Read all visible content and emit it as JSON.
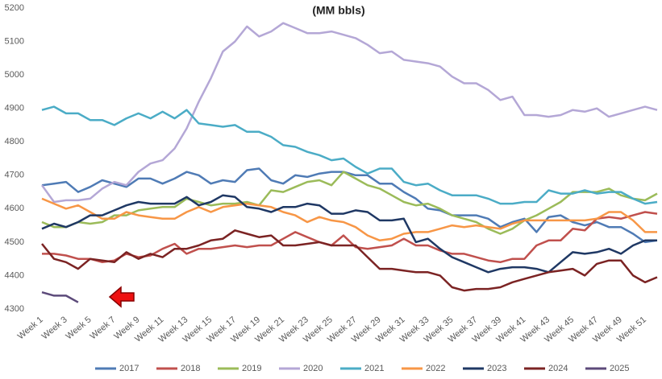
{
  "chart_data": {
    "type": "line",
    "title": "(MM bbls)",
    "categories": [
      "Week 1",
      null,
      "Week 3",
      null,
      "Week 5",
      null,
      "Week 7",
      null,
      "Week 9",
      null,
      "Week 11",
      null,
      "Week 13",
      null,
      "Week 15",
      null,
      "Week 17",
      null,
      "Week 19",
      null,
      "Week 21",
      null,
      "Week 23",
      null,
      "Week 25",
      null,
      "Week 27",
      null,
      "Week 29",
      null,
      "Week 31",
      null,
      "Week 33",
      null,
      "Week 35",
      null,
      "Week 37",
      null,
      "Week 39",
      null,
      "Week 41",
      null,
      "Week 43",
      null,
      "Week 45",
      null,
      "Week 47",
      null,
      "Week 49",
      null,
      "Week 51",
      null
    ],
    "ylim": [
      4300,
      5200
    ],
    "yticks": [
      4300,
      4400,
      4500,
      4600,
      4700,
      4800,
      4900,
      5000,
      5100,
      5200
    ],
    "grid": false,
    "legend": "bottom",
    "series": [
      {
        "name": "2017",
        "color": "#4f7bb5",
        "values": [
          4670,
          4675,
          4680,
          4650,
          4665,
          4685,
          4675,
          4665,
          4690,
          4690,
          4675,
          4690,
          4710,
          4700,
          4675,
          4685,
          4680,
          4715,
          4720,
          4685,
          4675,
          4700,
          4695,
          4705,
          4710,
          4710,
          4700,
          4700,
          4675,
          4675,
          4650,
          4630,
          4600,
          4595,
          4580,
          4580,
          4580,
          4570,
          4545,
          4560,
          4570,
          4530,
          4575,
          4580,
          4560,
          4550,
          4560,
          4545,
          4545,
          4525,
          4500,
          4505
        ]
      },
      {
        "name": "2018",
        "color": "#c0504d",
        "values": [
          4465,
          4465,
          4460,
          4450,
          4450,
          4440,
          4445,
          4465,
          4455,
          4460,
          4480,
          4495,
          4465,
          4480,
          4480,
          4485,
          4490,
          4485,
          4490,
          4490,
          4510,
          4530,
          4515,
          4500,
          4490,
          4520,
          4485,
          4480,
          4485,
          4490,
          4510,
          4490,
          4490,
          4475,
          4465,
          4465,
          4455,
          4445,
          4440,
          4450,
          4450,
          4490,
          4505,
          4505,
          4540,
          4535,
          4570,
          4575,
          4570,
          4580,
          4590,
          4585
        ]
      },
      {
        "name": "2019",
        "color": "#9bbb59",
        "values": [
          4560,
          4545,
          4545,
          4560,
          4555,
          4560,
          4580,
          4580,
          4595,
          4600,
          4605,
          4605,
          4630,
          4620,
          4610,
          4615,
          4615,
          4620,
          4610,
          4655,
          4650,
          4665,
          4680,
          4685,
          4670,
          4710,
          4690,
          4670,
          4660,
          4640,
          4620,
          4610,
          4615,
          4600,
          4580,
          4570,
          4560,
          4540,
          4525,
          4540,
          4565,
          4580,
          4600,
          4620,
          4650,
          4650,
          4650,
          4660,
          4640,
          4630,
          4625,
          4645
        ]
      },
      {
        "name": "2020",
        "color": "#b4a7d6",
        "values": [
          4670,
          4620,
          4625,
          4625,
          4630,
          4660,
          4680,
          4670,
          4710,
          4735,
          4745,
          4780,
          4840,
          4920,
          4990,
          5070,
          5100,
          5145,
          5115,
          5130,
          5155,
          5140,
          5125,
          5125,
          5130,
          5120,
          5110,
          5090,
          5065,
          5070,
          5045,
          5040,
          5035,
          5025,
          4995,
          4975,
          4975,
          4955,
          4925,
          4935,
          4880,
          4880,
          4875,
          4880,
          4895,
          4890,
          4900,
          4875,
          4885,
          4895,
          4905,
          4895
        ]
      },
      {
        "name": "2021",
        "color": "#4bacc6",
        "values": [
          4895,
          4905,
          4885,
          4885,
          4865,
          4865,
          4850,
          4870,
          4885,
          4870,
          4890,
          4870,
          4895,
          4855,
          4850,
          4845,
          4850,
          4830,
          4830,
          4815,
          4790,
          4785,
          4770,
          4760,
          4745,
          4750,
          4725,
          4705,
          4720,
          4720,
          4680,
          4670,
          4675,
          4655,
          4640,
          4640,
          4640,
          4630,
          4615,
          4615,
          4620,
          4620,
          4655,
          4645,
          4645,
          4655,
          4645,
          4650,
          4650,
          4630,
          4615,
          4620
        ]
      },
      {
        "name": "2022",
        "color": "#f79646",
        "values": [
          4630,
          4615,
          4600,
          4610,
          4590,
          4570,
          4570,
          4590,
          4580,
          4575,
          4570,
          4570,
          4590,
          4605,
          4590,
          4605,
          4610,
          4615,
          4610,
          4605,
          4590,
          4580,
          4560,
          4575,
          4565,
          4560,
          4545,
          4520,
          4505,
          4510,
          4525,
          4530,
          4530,
          4540,
          4550,
          4545,
          4550,
          4545,
          4540,
          4555,
          4565,
          4565,
          4565,
          4565,
          4565,
          4565,
          4570,
          4590,
          4590,
          4565,
          4530,
          4530
        ]
      },
      {
        "name": "2023",
        "color": "#1f3864",
        "values": [
          4540,
          4555,
          4545,
          4560,
          4580,
          4580,
          4595,
          4610,
          4620,
          4615,
          4615,
          4615,
          4635,
          4610,
          4620,
          4640,
          4635,
          4605,
          4600,
          4590,
          4605,
          4605,
          4615,
          4610,
          4585,
          4585,
          4595,
          4590,
          4565,
          4565,
          4570,
          4500,
          4510,
          4480,
          4455,
          4440,
          4425,
          4410,
          4420,
          4425,
          4425,
          4420,
          4410,
          4440,
          4470,
          4465,
          4470,
          4480,
          4465,
          4490,
          4505,
          4505
        ]
      },
      {
        "name": "2024",
        "color": "#7b2323",
        "values": [
          4495,
          4450,
          4440,
          4420,
          4450,
          4445,
          4440,
          4470,
          4450,
          4465,
          4455,
          4480,
          4480,
          4490,
          4505,
          4510,
          4535,
          4525,
          4515,
          4520,
          4490,
          4490,
          4495,
          4500,
          4490,
          4490,
          4490,
          4455,
          4420,
          4420,
          4415,
          4410,
          4410,
          4400,
          4365,
          4355,
          4360,
          4360,
          4365,
          4380,
          4390,
          4400,
          4410,
          4415,
          4420,
          4400,
          4435,
          4445,
          4445,
          4400,
          4380,
          4395
        ]
      },
      {
        "name": "2025",
        "color": "#5c4a7a",
        "values": [
          4350,
          4340,
          4340,
          4320,
          null,
          null,
          null,
          null,
          null,
          null,
          null,
          null,
          null,
          null,
          null,
          null,
          null,
          null,
          null,
          null,
          null,
          null,
          null,
          null,
          null,
          null,
          null,
          null,
          null,
          null,
          null,
          null,
          null,
          null,
          null,
          null,
          null,
          null,
          null,
          null,
          null,
          null,
          null,
          null,
          null,
          null,
          null,
          null,
          null,
          null,
          null,
          null
        ]
      }
    ]
  }
}
